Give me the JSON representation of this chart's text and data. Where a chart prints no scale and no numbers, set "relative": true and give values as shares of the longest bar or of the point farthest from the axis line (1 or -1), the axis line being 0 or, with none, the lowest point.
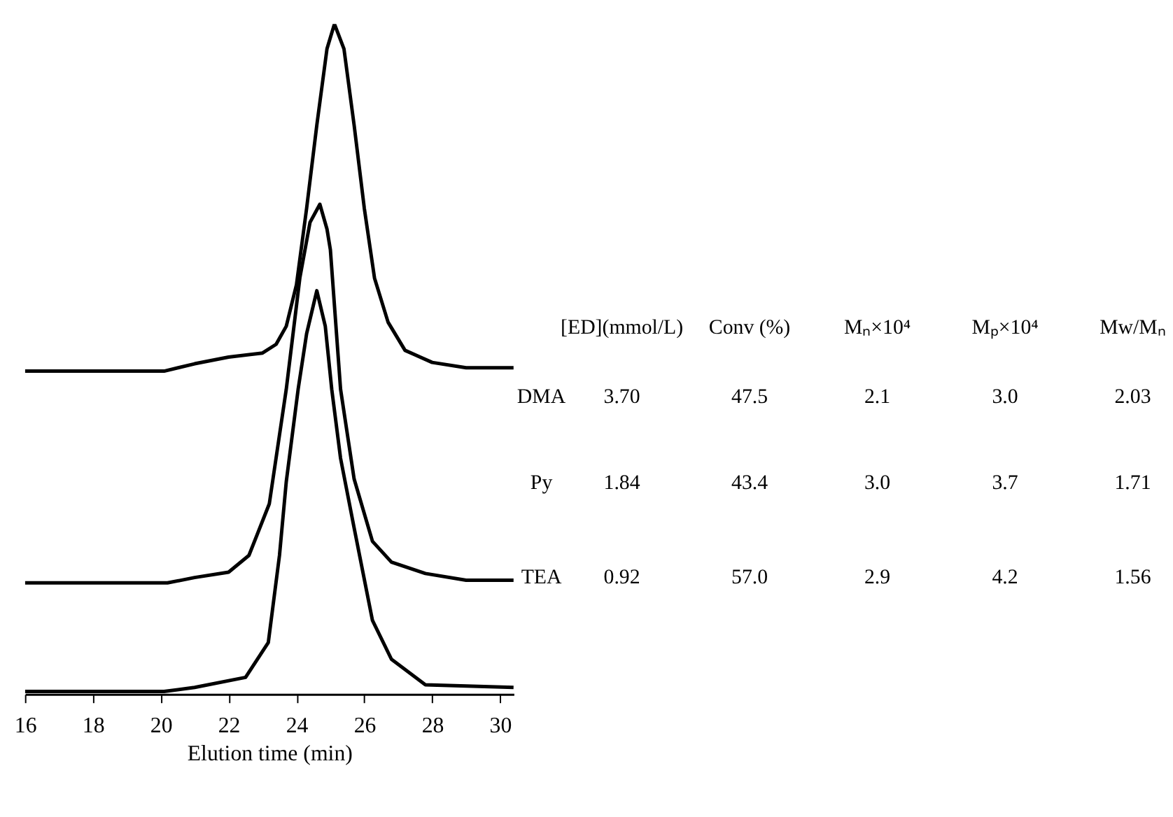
{
  "chart_data": {
    "type": "line",
    "relative": true,
    "xlabel": "Elution time (min)",
    "xlim": [
      16,
      30.4
    ],
    "xticks": [
      16,
      18,
      20,
      22,
      24,
      26,
      28,
      30
    ],
    "legend": false,
    "grid": false,
    "marker": "none",
    "line_style": "solid",
    "series": [
      {
        "name": "DMA",
        "color": "#000000",
        "x": [
          16,
          20.1,
          21,
          22,
          23.0,
          23.4,
          23.7,
          24.0,
          24.3,
          24.6,
          24.9,
          25.12,
          25.4,
          25.7,
          26.0,
          26.3,
          26.7,
          27.2,
          28,
          29,
          30.4
        ],
        "values": [
          0.482,
          0.482,
          0.493,
          0.503,
          0.509,
          0.522,
          0.549,
          0.611,
          0.725,
          0.849,
          0.963,
          1.0,
          0.963,
          0.849,
          0.725,
          0.621,
          0.555,
          0.513,
          0.495,
          0.487,
          0.487
        ]
      },
      {
        "name": "Py",
        "color": "#000000",
        "x": [
          16,
          20.2,
          21,
          22,
          22.6,
          23.2,
          23.7,
          24.1,
          24.4,
          24.69,
          24.9,
          25.0,
          25.3,
          25.7,
          26.24,
          26.8,
          27.8,
          29,
          30.4
        ],
        "values": [
          0.166,
          0.166,
          0.174,
          0.182,
          0.207,
          0.284,
          0.455,
          0.621,
          0.704,
          0.731,
          0.694,
          0.663,
          0.455,
          0.321,
          0.228,
          0.197,
          0.18,
          0.17,
          0.17
        ]
      },
      {
        "name": "TEA",
        "color": "#000000",
        "x": [
          16,
          20.1,
          21,
          22.5,
          23.17,
          23.5,
          23.7,
          24.05,
          24.3,
          24.6,
          24.85,
          25.04,
          25.3,
          25.7,
          26.24,
          26.8,
          27.8,
          30.4
        ],
        "values": [
          0.004,
          0.004,
          0.01,
          0.025,
          0.077,
          0.207,
          0.317,
          0.455,
          0.538,
          0.602,
          0.549,
          0.455,
          0.352,
          0.248,
          0.11,
          0.052,
          0.014,
          0.01
        ]
      }
    ],
    "annotations": [
      "[ED](mmol/L)",
      "Conv (%)",
      "Mₙ×10⁴",
      "Mₚ×10⁴",
      "Mw/Mₙ",
      "3.70",
      "47.5",
      "2.1",
      "3.0",
      "2.03",
      "1.84",
      "43.4",
      "3.0",
      "3.7",
      "1.71",
      "0.92",
      "57.0",
      "2.9",
      "4.2",
      "1.56"
    ]
  }
}
